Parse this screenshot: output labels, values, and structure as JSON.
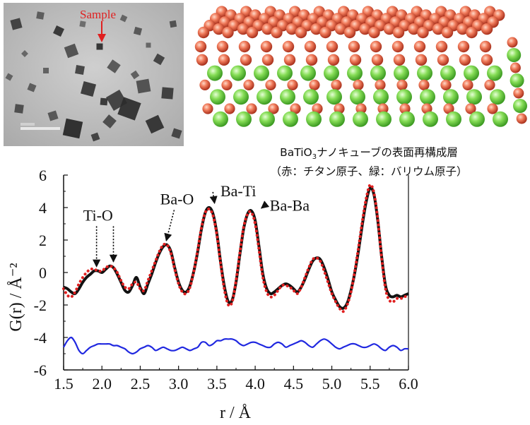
{
  "tem_image": {
    "annotation_label": "Sample",
    "annotation_color": "#e02020"
  },
  "crystal_model": {
    "caption_line1_prefix": "BaTiO",
    "caption_line1_sub": "3",
    "caption_line1_suffix": "ナノキューブの表面再構成層",
    "caption_line2": "（赤：チタン原子、緑：バリウム原子）",
    "ti_color": "#e0553a",
    "ba_color": "#6cd13a"
  },
  "chart_data": {
    "type": "line",
    "xlabel": "r / Å",
    "ylabel": "G(r) / Å⁻²",
    "xlim": [
      1.5,
      6.0
    ],
    "ylim": [
      -6,
      6
    ],
    "xticks": [
      "1.5",
      "2.0",
      "2.5",
      "3.0",
      "3.5",
      "4.0",
      "4.5",
      "5.0",
      "5.5",
      "6.0"
    ],
    "yticks": [
      "-6",
      "-4",
      "-2",
      "0",
      "2",
      "4",
      "6"
    ],
    "annotations": [
      {
        "label": "Ti-O",
        "targets": [
          [
            1.93,
            0.1
          ],
          [
            2.15,
            0.4
          ]
        ],
        "text_at": [
          1.95,
          3.2
        ]
      },
      {
        "label": "Ba-O",
        "targets": [
          [
            2.84,
            1.7
          ]
        ],
        "text_at": [
          2.98,
          4.2
        ]
      },
      {
        "label": "Ba-Ti",
        "targets": [
          [
            3.47,
            4.0
          ]
        ],
        "text_at": [
          3.78,
          4.7
        ]
      },
      {
        "label": "Ba-Ba",
        "targets": [
          [
            4.08,
            3.7
          ]
        ],
        "text_at": [
          4.45,
          3.8
        ]
      }
    ],
    "series": [
      {
        "color": "#111111",
        "style": "solid",
        "x": [
          1.5,
          1.55,
          1.6,
          1.65,
          1.7,
          1.75,
          1.8,
          1.85,
          1.9,
          1.95,
          2.0,
          2.05,
          2.1,
          2.15,
          2.2,
          2.25,
          2.3,
          2.35,
          2.4,
          2.45,
          2.5,
          2.55,
          2.6,
          2.65,
          2.7,
          2.75,
          2.8,
          2.85,
          2.9,
          2.95,
          3.0,
          3.05,
          3.1,
          3.15,
          3.2,
          3.25,
          3.3,
          3.35,
          3.4,
          3.45,
          3.5,
          3.55,
          3.6,
          3.65,
          3.7,
          3.75,
          3.8,
          3.85,
          3.9,
          3.95,
          4.0,
          4.05,
          4.1,
          4.15,
          4.2,
          4.25,
          4.3,
          4.35,
          4.4,
          4.45,
          4.5,
          4.55,
          4.6,
          4.65,
          4.7,
          4.75,
          4.8,
          4.85,
          4.9,
          4.95,
          5.0,
          5.05,
          5.1,
          5.15,
          5.2,
          5.25,
          5.3,
          5.35,
          5.4,
          5.45,
          5.5,
          5.55,
          5.6,
          5.65,
          5.7,
          5.75,
          5.8,
          5.85,
          5.9,
          5.95,
          6.0
        ],
        "y": [
          -0.9,
          -1.0,
          -1.2,
          -1.3,
          -1.0,
          -0.6,
          -0.3,
          -0.1,
          0.1,
          0.1,
          0.0,
          0.2,
          0.4,
          0.3,
          -0.1,
          -0.6,
          -1.1,
          -1.2,
          -0.8,
          -0.3,
          -0.9,
          -1.3,
          -0.7,
          -0.1,
          0.6,
          1.2,
          1.6,
          1.7,
          1.3,
          0.3,
          -0.6,
          -1.1,
          -1.2,
          -0.8,
          0.1,
          1.3,
          2.7,
          3.7,
          4.0,
          3.6,
          2.4,
          0.6,
          -0.9,
          -1.8,
          -1.7,
          -0.6,
          1.1,
          2.7,
          3.6,
          3.8,
          3.2,
          1.6,
          -0.1,
          -1.0,
          -1.3,
          -1.2,
          -1.0,
          -0.8,
          -0.7,
          -0.8,
          -1.0,
          -1.2,
          -0.9,
          -0.4,
          0.2,
          0.7,
          0.9,
          0.8,
          0.3,
          -0.4,
          -1.2,
          -1.7,
          -2.1,
          -2.2,
          -1.9,
          -1.1,
          0.0,
          1.4,
          3.0,
          4.4,
          5.2,
          4.8,
          3.2,
          1.0,
          -0.8,
          -1.4,
          -1.5,
          -1.4,
          -1.5,
          -1.4,
          -1.3
        ]
      },
      {
        "color": "#e02020",
        "style": "dotted",
        "x": [
          1.5,
          1.55,
          1.6,
          1.65,
          1.7,
          1.75,
          1.8,
          1.85,
          1.9,
          1.95,
          2.0,
          2.05,
          2.1,
          2.15,
          2.2,
          2.25,
          2.3,
          2.35,
          2.4,
          2.45,
          2.5,
          2.55,
          2.6,
          2.65,
          2.7,
          2.75,
          2.8,
          2.85,
          2.9,
          2.95,
          3.0,
          3.05,
          3.1,
          3.15,
          3.2,
          3.25,
          3.3,
          3.35,
          3.4,
          3.45,
          3.5,
          3.55,
          3.6,
          3.65,
          3.7,
          3.75,
          3.8,
          3.85,
          3.9,
          3.95,
          4.0,
          4.05,
          4.1,
          4.15,
          4.2,
          4.25,
          4.3,
          4.35,
          4.4,
          4.45,
          4.5,
          4.55,
          4.6,
          4.65,
          4.7,
          4.75,
          4.8,
          4.85,
          4.9,
          4.95,
          5.0,
          5.05,
          5.1,
          5.15,
          5.2,
          5.25,
          5.3,
          5.35,
          5.4,
          5.45,
          5.5,
          5.55,
          5.6,
          5.65,
          5.7,
          5.75,
          5.8,
          5.85,
          5.9,
          5.95,
          6.0
        ],
        "y": [
          -1.0,
          -1.4,
          -1.5,
          -1.2,
          -0.7,
          -0.3,
          0.0,
          0.2,
          0.2,
          0.1,
          0.1,
          0.3,
          0.4,
          0.3,
          0.0,
          -0.5,
          -0.9,
          -1.0,
          -0.7,
          -0.6,
          -1.0,
          -1.1,
          -0.5,
          0.1,
          0.7,
          1.3,
          1.7,
          1.7,
          1.2,
          0.2,
          -0.7,
          -1.2,
          -1.3,
          -0.9,
          0.1,
          1.4,
          2.8,
          3.7,
          3.9,
          3.5,
          2.3,
          0.5,
          -1.1,
          -2.0,
          -1.8,
          -0.5,
          1.2,
          2.8,
          3.6,
          3.7,
          3.0,
          1.4,
          -0.3,
          -1.2,
          -1.5,
          -1.4,
          -1.1,
          -0.8,
          -0.8,
          -0.9,
          -1.1,
          -1.3,
          -0.9,
          -0.3,
          0.3,
          0.8,
          0.9,
          0.7,
          0.1,
          -0.6,
          -1.3,
          -1.8,
          -2.2,
          -2.4,
          -2.0,
          -1.2,
          0.1,
          1.6,
          3.2,
          4.6,
          5.4,
          4.9,
          3.3,
          0.9,
          -1.0,
          -1.7,
          -1.8,
          -1.6,
          -1.6,
          -1.5,
          -1.4
        ]
      },
      {
        "color": "#2028e0",
        "style": "solid",
        "x": [
          1.5,
          1.55,
          1.6,
          1.65,
          1.7,
          1.75,
          1.8,
          1.85,
          1.9,
          1.95,
          2.0,
          2.05,
          2.1,
          2.15,
          2.2,
          2.25,
          2.3,
          2.35,
          2.4,
          2.45,
          2.5,
          2.55,
          2.6,
          2.65,
          2.7,
          2.75,
          2.8,
          2.85,
          2.9,
          2.95,
          3.0,
          3.05,
          3.1,
          3.15,
          3.2,
          3.25,
          3.3,
          3.35,
          3.4,
          3.45,
          3.5,
          3.55,
          3.6,
          3.65,
          3.7,
          3.75,
          3.8,
          3.85,
          3.9,
          3.95,
          4.0,
          4.05,
          4.1,
          4.15,
          4.2,
          4.25,
          4.3,
          4.35,
          4.4,
          4.45,
          4.5,
          4.55,
          4.6,
          4.65,
          4.7,
          4.75,
          4.8,
          4.85,
          4.9,
          4.95,
          5.0,
          5.05,
          5.1,
          5.15,
          5.2,
          5.25,
          5.3,
          5.35,
          5.4,
          5.45,
          5.5,
          5.55,
          5.6,
          5.65,
          5.7,
          5.75,
          5.8,
          5.85,
          5.9,
          5.95,
          6.0
        ],
        "y": [
          -4.6,
          -4.2,
          -4.0,
          -4.3,
          -4.8,
          -5.0,
          -4.8,
          -4.6,
          -4.5,
          -4.4,
          -4.4,
          -4.4,
          -4.4,
          -4.5,
          -4.5,
          -4.6,
          -4.7,
          -4.9,
          -5.0,
          -4.9,
          -4.7,
          -4.6,
          -4.5,
          -4.6,
          -4.8,
          -4.7,
          -4.6,
          -4.7,
          -4.8,
          -4.8,
          -4.7,
          -4.6,
          -4.7,
          -4.8,
          -4.7,
          -4.6,
          -4.3,
          -4.3,
          -4.5,
          -4.4,
          -4.2,
          -4.2,
          -4.1,
          -4.1,
          -4.1,
          -4.2,
          -4.4,
          -4.5,
          -4.4,
          -4.3,
          -4.3,
          -4.4,
          -4.5,
          -4.6,
          -4.6,
          -4.4,
          -4.3,
          -4.4,
          -4.6,
          -4.5,
          -4.4,
          -4.3,
          -4.2,
          -4.3,
          -4.5,
          -4.6,
          -4.4,
          -4.2,
          -4.1,
          -4.2,
          -4.4,
          -4.6,
          -4.7,
          -4.6,
          -4.5,
          -4.4,
          -4.4,
          -4.5,
          -4.6,
          -4.6,
          -4.5,
          -4.4,
          -4.5,
          -4.7,
          -4.8,
          -4.6,
          -4.5,
          -4.6,
          -4.8,
          -4.7,
          -4.7
        ]
      }
    ]
  }
}
